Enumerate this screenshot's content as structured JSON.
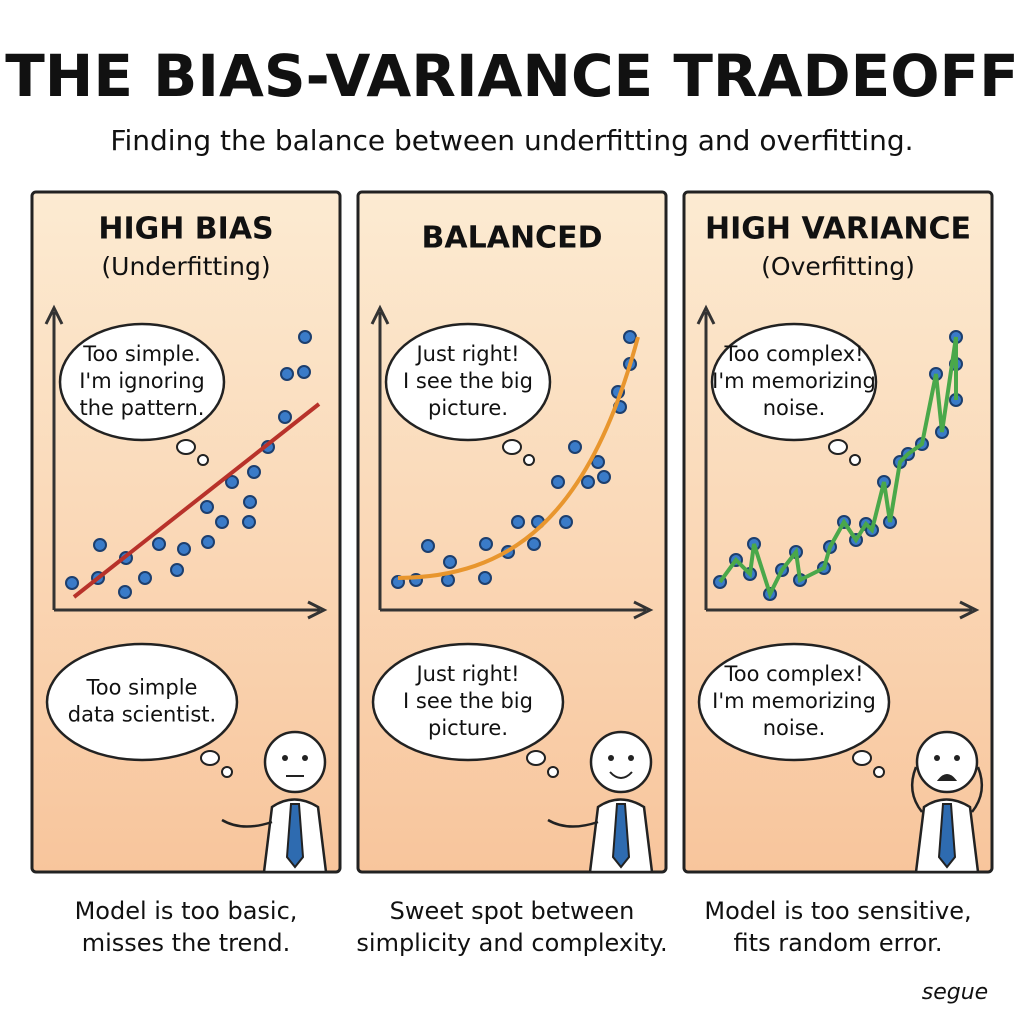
{
  "header": {
    "title": "THE BIAS-VARIANCE TRADEOFF",
    "subtitle": "Finding the balance between underfitting and overfitting."
  },
  "panels": [
    {
      "heading": "HIGH BIAS",
      "subheading": "(Underfitting)",
      "chart_thought": [
        "Too simple.",
        "I'm ignoring",
        "the pattern."
      ],
      "person_thought": [
        "Too simple",
        "data scientist."
      ],
      "caption": [
        "Model is too basic,",
        "misses the trend."
      ]
    },
    {
      "heading": "BALANCED",
      "chart_thought": [
        "Just right!",
        "I see the big",
        "picture."
      ],
      "person_thought": [
        "Just right!",
        "I see the big",
        "picture."
      ],
      "caption": [
        "Sweet spot between",
        "simplicity and complexity."
      ]
    },
    {
      "heading": "HIGH VARIANCE",
      "subheading": "(Overfitting)",
      "chart_thought": [
        "Too complex!",
        "I'm memorizing",
        "noise."
      ],
      "person_thought": [
        "Too complex!",
        "I'm memorizing",
        "noise."
      ],
      "caption": [
        "Model is too sensitive,",
        "fits random error."
      ]
    }
  ],
  "signature": "segue"
}
